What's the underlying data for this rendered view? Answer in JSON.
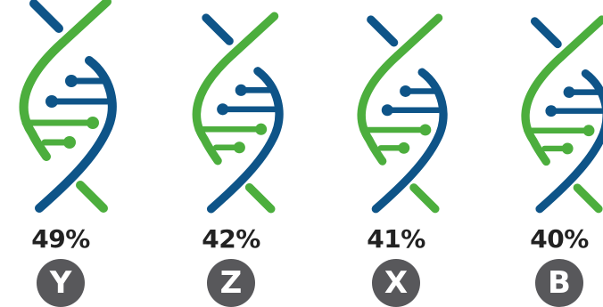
{
  "chart_data": {
    "type": "bar",
    "categories": [
      "Y",
      "Z",
      "X",
      "B"
    ],
    "values": [
      49,
      42,
      41,
      40
    ],
    "value_labels": [
      "49%",
      "42%",
      "41%",
      "40%"
    ],
    "unit": "%",
    "encoding": "helix icon size proportional to value"
  },
  "colors": {
    "green": "#4cae3d",
    "blue": "#0e5488",
    "badge": "#58585b",
    "text": "#222222"
  },
  "icons": [
    "dna-helix-icon"
  ]
}
